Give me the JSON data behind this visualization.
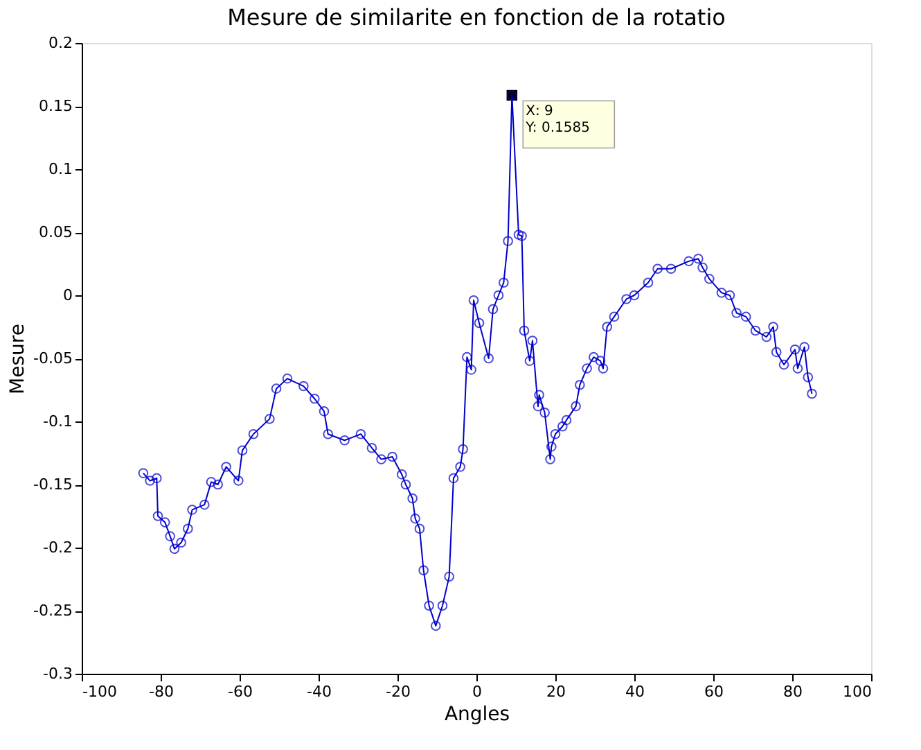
{
  "chart_data": {
    "type": "line",
    "title": "Mesure de similarite en fonction de la rotatio",
    "xlabel": "Angles",
    "ylabel": "Mesure",
    "xlim": [
      -100,
      100
    ],
    "xticks": [
      -100,
      -80,
      -60,
      -40,
      -20,
      0,
      20,
      40,
      60,
      80,
      100
    ],
    "ylim": [
      -0.3,
      0.2
    ],
    "yticks": [
      -0.3,
      -0.25,
      -0.2,
      -0.15,
      -0.1,
      -0.05,
      0,
      0.05,
      0.1,
      0.15,
      0.2
    ],
    "grid": false,
    "marker": "circle",
    "line_style": "solid",
    "annotations": [
      {
        "text": "X: 9\nY: 0.1585",
        "x": 9,
        "y": 0.1585
      }
    ],
    "series": [
      {
        "color": "#0000cc",
        "x": [
          -84.4,
          -82.7,
          -81.0,
          -80.7,
          -78.9,
          -77.6,
          -76.5,
          -74.8,
          -73.1,
          -72.0,
          -68.9,
          -67.2,
          -65.5,
          -63.4,
          -60.3,
          -59.3,
          -56.5,
          -52.4,
          -50.7,
          -47.9,
          -43.8,
          -41.0,
          -38.6,
          -37.6,
          -33.4,
          -29.3,
          -26.5,
          -24.1,
          -21.3,
          -18.9,
          -17.9,
          -16.2,
          -15.5,
          -14.4,
          -13.4,
          -12.0,
          -10.3,
          -8.6,
          -6.9,
          -5.8,
          -4.1,
          -3.4,
          -2.4,
          -1.3,
          -0.7,
          0.7,
          3.1,
          4.2,
          5.6,
          6.9,
          8.0,
          9,
          10.7,
          11.5,
          12.1,
          13.5,
          14.2,
          15.6,
          15.9,
          17.3,
          18.7,
          19.0,
          20.0,
          21.8,
          22.8,
          25.2,
          26.2,
          28.0,
          29.7,
          31.4,
          32.1,
          33.1,
          34.9,
          38.0,
          40.0,
          43.5,
          45.9,
          49.3,
          53.8,
          56.2,
          57.3,
          59.0,
          62.1,
          64.2,
          65.9,
          68.3,
          70.7,
          73.5,
          75.2,
          76.0,
          77.9,
          80.7,
          81.4,
          83.1,
          84.0,
          85.0
        ],
        "values": [
          -0.141,
          -0.147,
          -0.145,
          -0.175,
          -0.18,
          -0.191,
          -0.201,
          -0.196,
          -0.185,
          -0.17,
          -0.166,
          -0.148,
          -0.15,
          -0.136,
          -0.147,
          -0.123,
          -0.11,
          -0.098,
          -0.074,
          -0.066,
          -0.072,
          -0.082,
          -0.092,
          -0.11,
          -0.115,
          -0.11,
          -0.121,
          -0.13,
          -0.128,
          -0.142,
          -0.15,
          -0.161,
          -0.177,
          -0.185,
          -0.218,
          -0.246,
          -0.262,
          -0.246,
          -0.223,
          -0.145,
          -0.136,
          -0.122,
          -0.049,
          -0.059,
          -0.004,
          -0.022,
          -0.05,
          -0.011,
          0.0,
          0.01,
          0.043,
          0.1585,
          0.048,
          0.047,
          -0.028,
          -0.052,
          -0.036,
          -0.088,
          -0.079,
          -0.093,
          -0.13,
          -0.12,
          -0.11,
          -0.104,
          -0.099,
          -0.088,
          -0.071,
          -0.058,
          -0.049,
          -0.052,
          -0.058,
          -0.025,
          -0.017,
          -0.003,
          0.0,
          0.01,
          0.021,
          0.021,
          0.027,
          0.029,
          0.022,
          0.013,
          0.002,
          0.0,
          -0.014,
          -0.017,
          -0.028,
          -0.033,
          -0.025,
          -0.045,
          -0.055,
          -0.043,
          -0.058,
          -0.041,
          -0.065,
          -0.078
        ]
      }
    ]
  }
}
